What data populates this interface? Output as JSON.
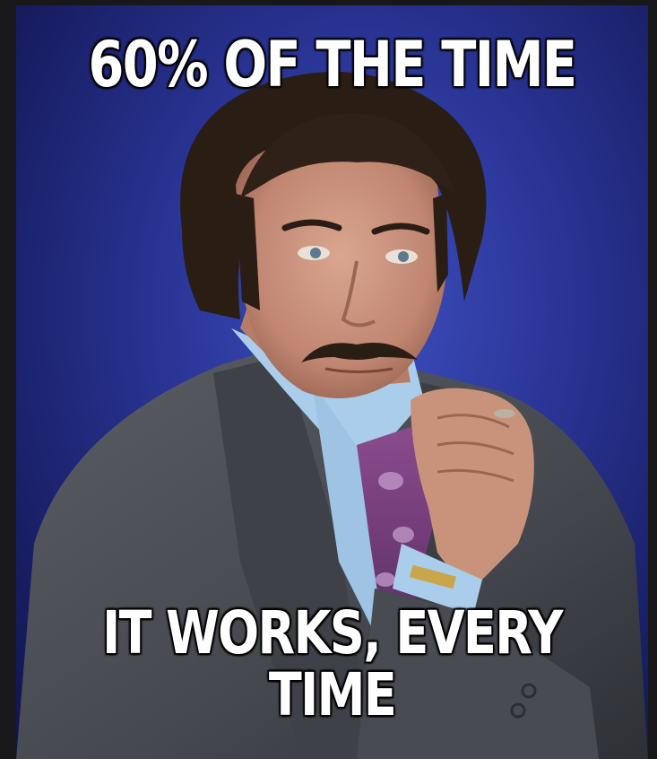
{
  "meme": {
    "top_text": "60% OF THE TIME",
    "bottom_text_line1": "IT WORKS, EVERY",
    "bottom_text_line2": "TIME"
  },
  "colors": {
    "background": "#2a3596",
    "suit": "#4b4e55",
    "shirt": "#a9cdea",
    "hair": "#2a1d14",
    "skin": "#c99680"
  }
}
